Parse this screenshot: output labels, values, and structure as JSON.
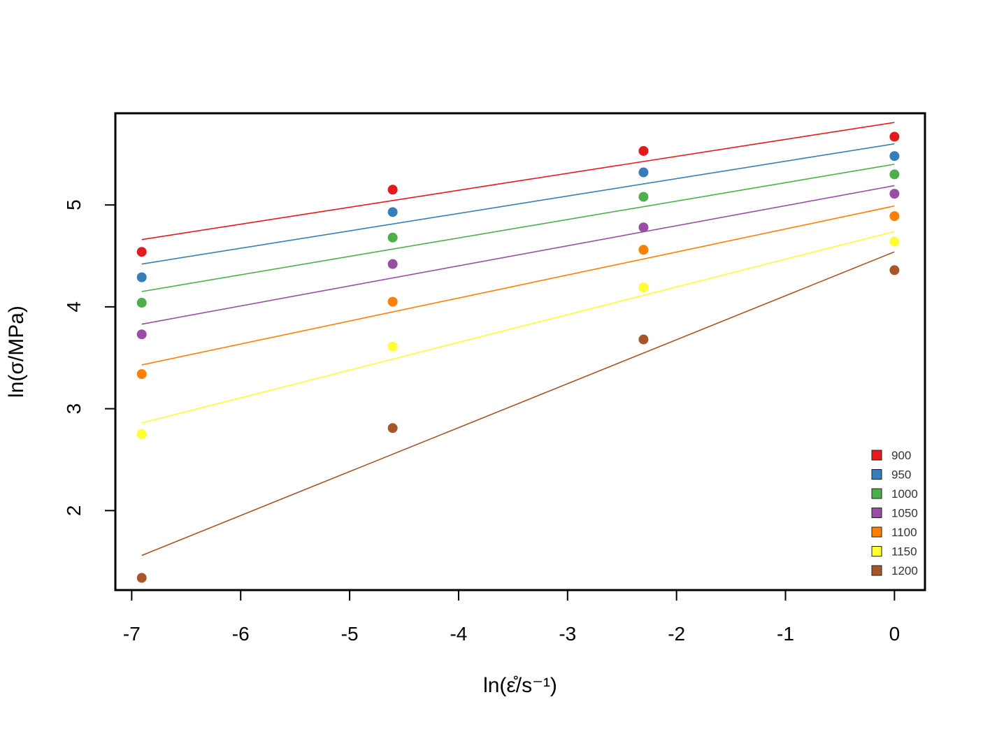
{
  "chart_data": {
    "type": "scatter",
    "xlabel": "ln(ε̊/s⁻¹)",
    "ylabel": "ln(σ/MPa)",
    "xlim": [
      -7.15,
      0.28
    ],
    "ylim": [
      1.22,
      5.9
    ],
    "x_ticks": [
      -7,
      -6,
      -5,
      -4,
      -3,
      -2,
      -1,
      0
    ],
    "y_ticks": [
      2,
      3,
      4,
      5
    ],
    "grid": false,
    "legend_position": "bottom-right",
    "x": [
      -6.908,
      -4.605,
      -2.303,
      0
    ],
    "series": [
      {
        "name": "900",
        "color": "#e41a1c",
        "values": [
          4.54,
          5.15,
          5.53,
          5.67
        ],
        "fit": [
          4.66,
          5.81
        ]
      },
      {
        "name": "950",
        "color": "#377eb8",
        "values": [
          4.29,
          4.93,
          5.32,
          5.48
        ],
        "fit": [
          4.42,
          5.6
        ]
      },
      {
        "name": "1000",
        "color": "#4daf4a",
        "values": [
          4.04,
          4.68,
          5.08,
          5.3
        ],
        "fit": [
          4.15,
          5.4
        ]
      },
      {
        "name": "1050",
        "color": "#984ea3",
        "values": [
          3.73,
          4.42,
          4.78,
          5.11
        ],
        "fit": [
          3.83,
          5.19
        ]
      },
      {
        "name": "1100",
        "color": "#ff7f00",
        "values": [
          3.34,
          4.05,
          4.56,
          4.89
        ],
        "fit": [
          3.43,
          4.99
        ]
      },
      {
        "name": "1150",
        "color": "#ffff33",
        "values": [
          2.75,
          3.61,
          4.19,
          4.64
        ],
        "fit": [
          2.86,
          4.74
        ]
      },
      {
        "name": "1200",
        "color": "#a65628",
        "values": [
          1.34,
          2.81,
          3.68,
          4.36
        ],
        "fit": [
          1.56,
          4.54
        ]
      }
    ]
  }
}
